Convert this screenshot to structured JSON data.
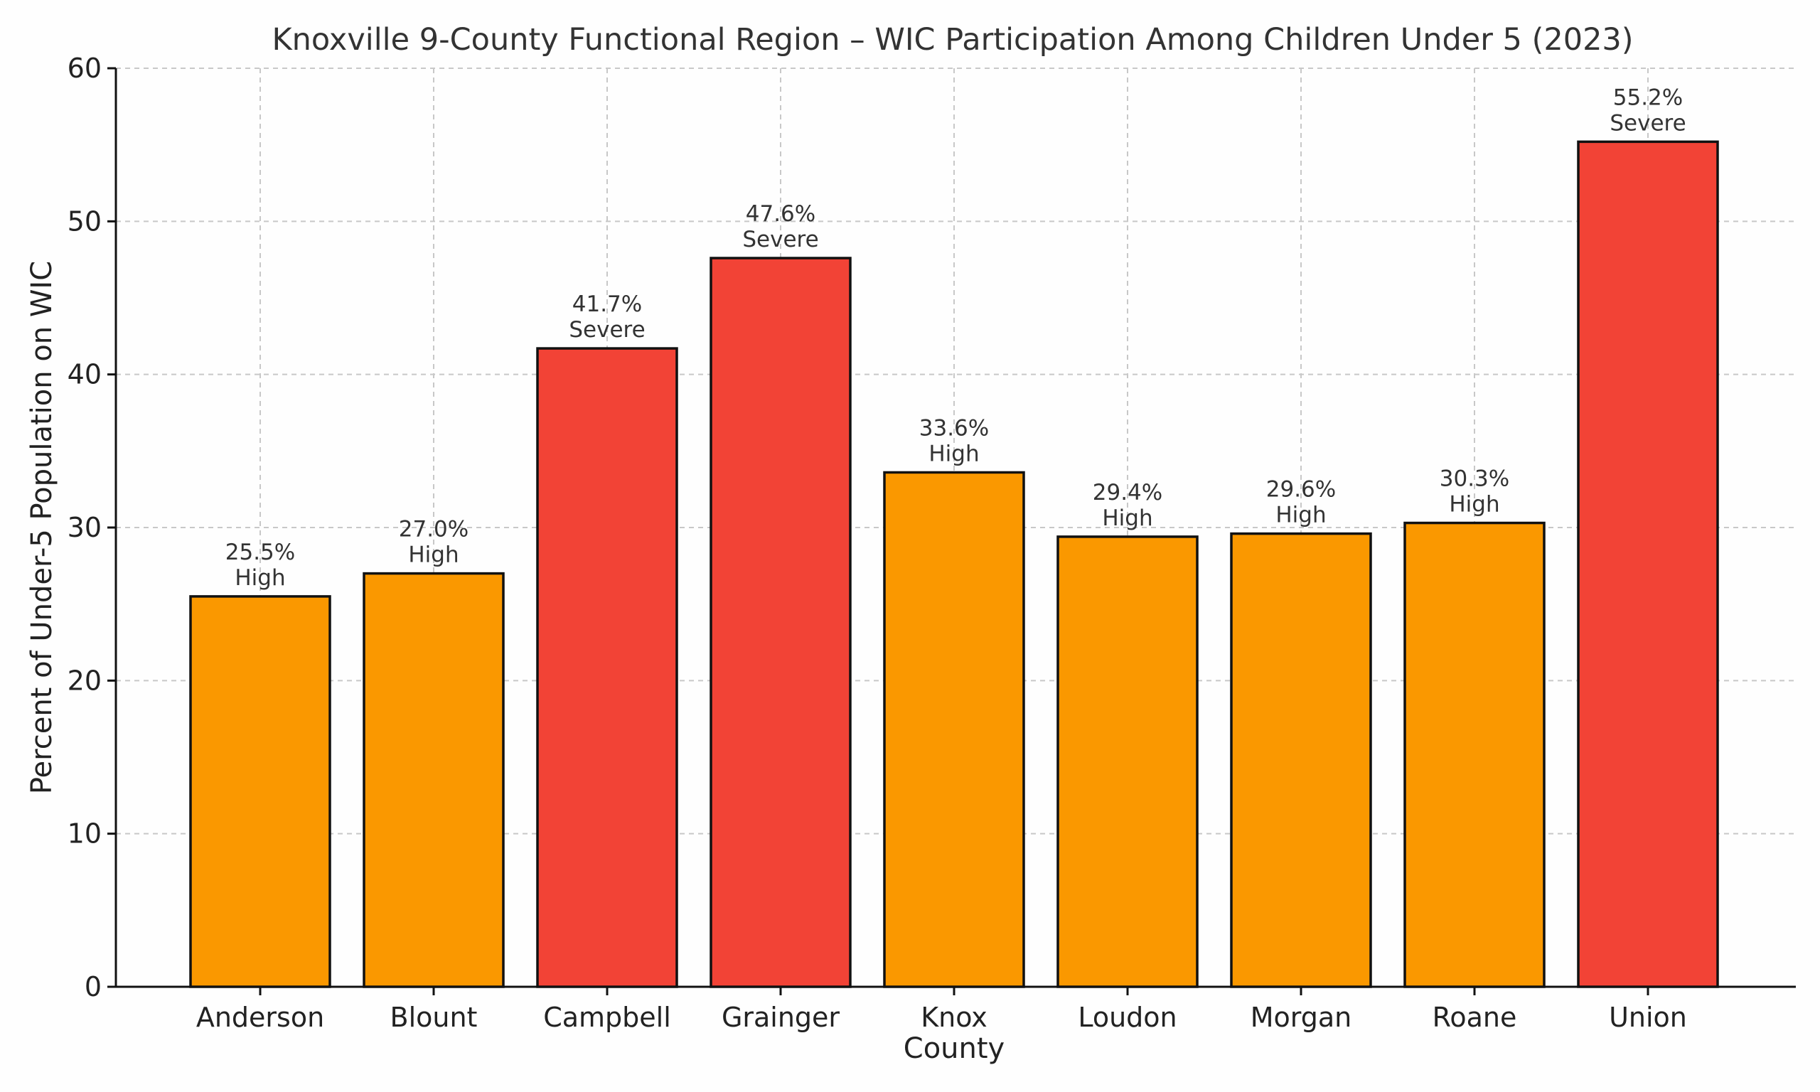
{
  "chart_data": {
    "type": "bar",
    "title": "Knoxville 9-County Functional Region – WIC Participation Among Children Under 5 (2023)",
    "xlabel": "County",
    "ylabel": "Percent of Under-5 Population on WIC",
    "ylim": [
      0,
      60
    ],
    "yticks": [
      0,
      10,
      20,
      30,
      40,
      50,
      60
    ],
    "grid": true,
    "categories": [
      "Anderson",
      "Blount",
      "Campbell",
      "Grainger",
      "Knox",
      "Loudon",
      "Morgan",
      "Roane",
      "Union"
    ],
    "values": [
      25.5,
      27.0,
      41.7,
      47.6,
      33.6,
      29.4,
      29.6,
      30.3,
      55.2
    ],
    "value_labels": [
      "25.5%",
      "27.0%",
      "41.7%",
      "47.6%",
      "33.6%",
      "29.4%",
      "29.6%",
      "30.3%",
      "55.2%"
    ],
    "severity": [
      "High",
      "High",
      "Severe",
      "Severe",
      "High",
      "High",
      "High",
      "High",
      "Severe"
    ],
    "colors": {
      "High": "#fa9800",
      "Severe": "#f24336"
    }
  }
}
